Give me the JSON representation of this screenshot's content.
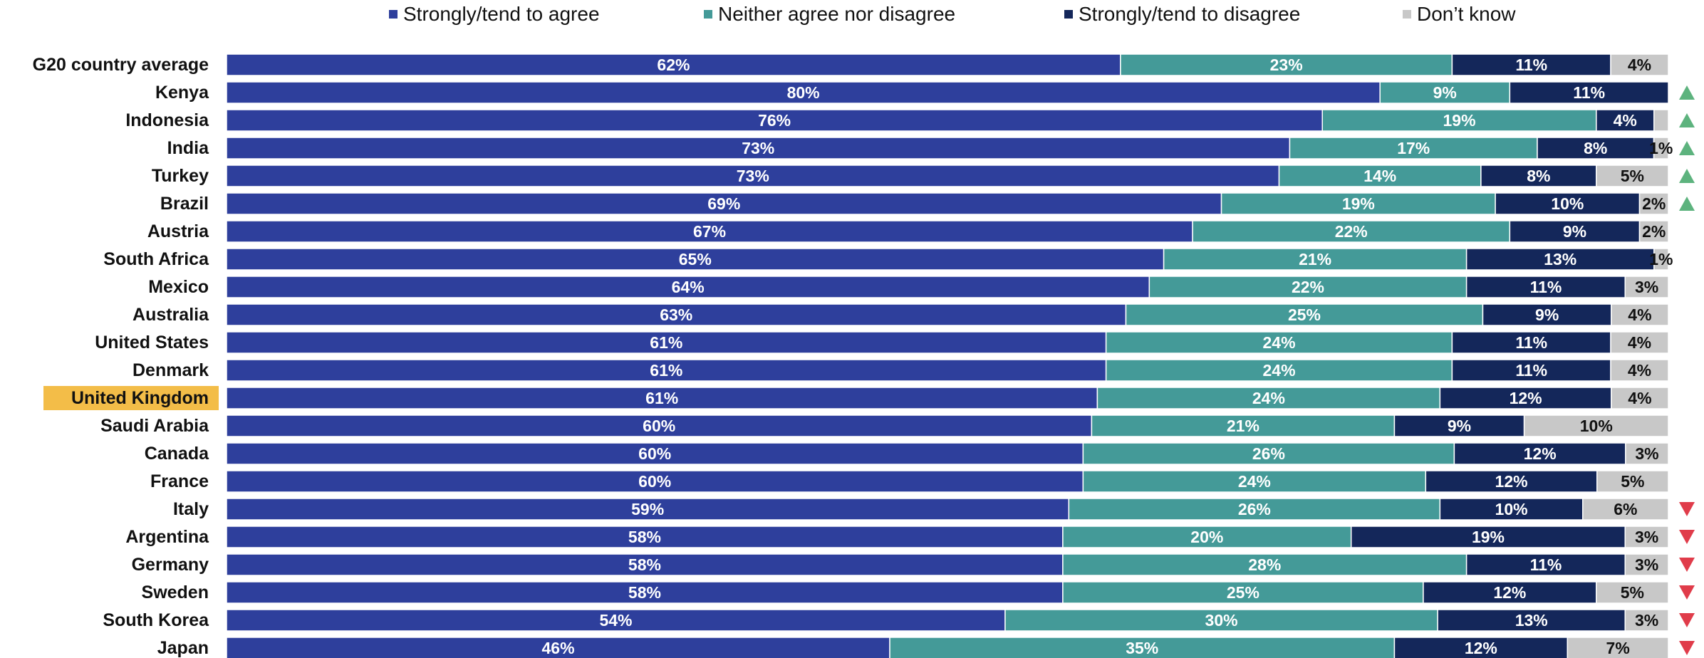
{
  "chart_data": {
    "type": "bar",
    "orientation": "horizontal",
    "stacked": true,
    "highlight_category": "United Kingdom",
    "highlight_color": "#f3bd48",
    "categories": [
      "G20 country average",
      "Kenya",
      "Indonesia",
      "India",
      "Turkey",
      "Brazil",
      "Austria",
      "South Africa",
      "Mexico",
      "Australia",
      "United States",
      "Denmark",
      "United Kingdom",
      "Saudi Arabia",
      "Canada",
      "France",
      "Italy",
      "Argentina",
      "Germany",
      "Sweden",
      "South Korea",
      "Japan"
    ],
    "series": [
      {
        "name": "Strongly/tend to agree",
        "color": "#2e3f9c",
        "label_color": "#ffffff",
        "values": [
          62,
          80,
          76,
          73,
          73,
          69,
          67,
          65,
          64,
          63,
          61,
          61,
          61,
          60,
          60,
          60,
          59,
          58,
          58,
          58,
          54,
          46
        ],
        "labels": [
          "62%",
          "80%",
          "76%",
          "73%",
          "73%",
          "69%",
          "67%",
          "65%",
          "64%",
          "63%",
          "61%",
          "61%",
          "61%",
          "60%",
          "60%",
          "60%",
          "59%",
          "58%",
          "58%",
          "58%",
          "54%",
          "46%"
        ]
      },
      {
        "name": "Neither agree nor disagree",
        "color": "#449a98",
        "label_color": "#ffffff",
        "values": [
          23,
          9,
          19,
          17,
          14,
          19,
          22,
          21,
          22,
          25,
          24,
          24,
          24,
          21,
          26,
          24,
          26,
          20,
          28,
          25,
          30,
          35
        ],
        "labels": [
          "23%",
          "9%",
          "19%",
          "17%",
          "14%",
          "19%",
          "22%",
          "21%",
          "22%",
          "25%",
          "24%",
          "24%",
          "24%",
          "21%",
          "26%",
          "24%",
          "26%",
          "20%",
          "28%",
          "25%",
          "30%",
          "35%"
        ]
      },
      {
        "name": "Strongly/tend to disagree",
        "color": "#14275a",
        "label_color": "#ffffff",
        "values": [
          11,
          11,
          4,
          8,
          8,
          10,
          9,
          13,
          11,
          9,
          11,
          11,
          12,
          9,
          12,
          12,
          10,
          19,
          11,
          12,
          13,
          12
        ],
        "labels": [
          "11%",
          "11%",
          "4%",
          "8%",
          "8%",
          "10%",
          "9%",
          "13%",
          "11%",
          "9%",
          "11%",
          "11%",
          "12%",
          "9%",
          "12%",
          "12%",
          "10%",
          "19%",
          "11%",
          "12%",
          "13%",
          "12%"
        ]
      },
      {
        "name": "Don’t know",
        "color": "#c8c8c8",
        "label_color": "#111111",
        "values": [
          4,
          0,
          1,
          1,
          5,
          2,
          2,
          1,
          3,
          4,
          4,
          4,
          4,
          10,
          3,
          5,
          6,
          3,
          3,
          5,
          3,
          7
        ],
        "labels": [
          "4%",
          "",
          "",
          "1%",
          "5%",
          "2%",
          "2%",
          "1%",
          "3%",
          "4%",
          "4%",
          "4%",
          "4%",
          "10%",
          "3%",
          "5%",
          "6%",
          "3%",
          "3%",
          "5%",
          "3%",
          "7%"
        ]
      }
    ],
    "change_markers": [
      "",
      "up",
      "up",
      "up",
      "up",
      "up",
      "",
      "",
      "",
      "",
      "",
      "",
      "",
      "",
      "",
      "",
      "down",
      "down",
      "down",
      "down",
      "down",
      "down"
    ],
    "marker_colors": {
      "up": "#5db37e",
      "down": "#e03c4a"
    },
    "legend_position": "top",
    "grid": false
  }
}
